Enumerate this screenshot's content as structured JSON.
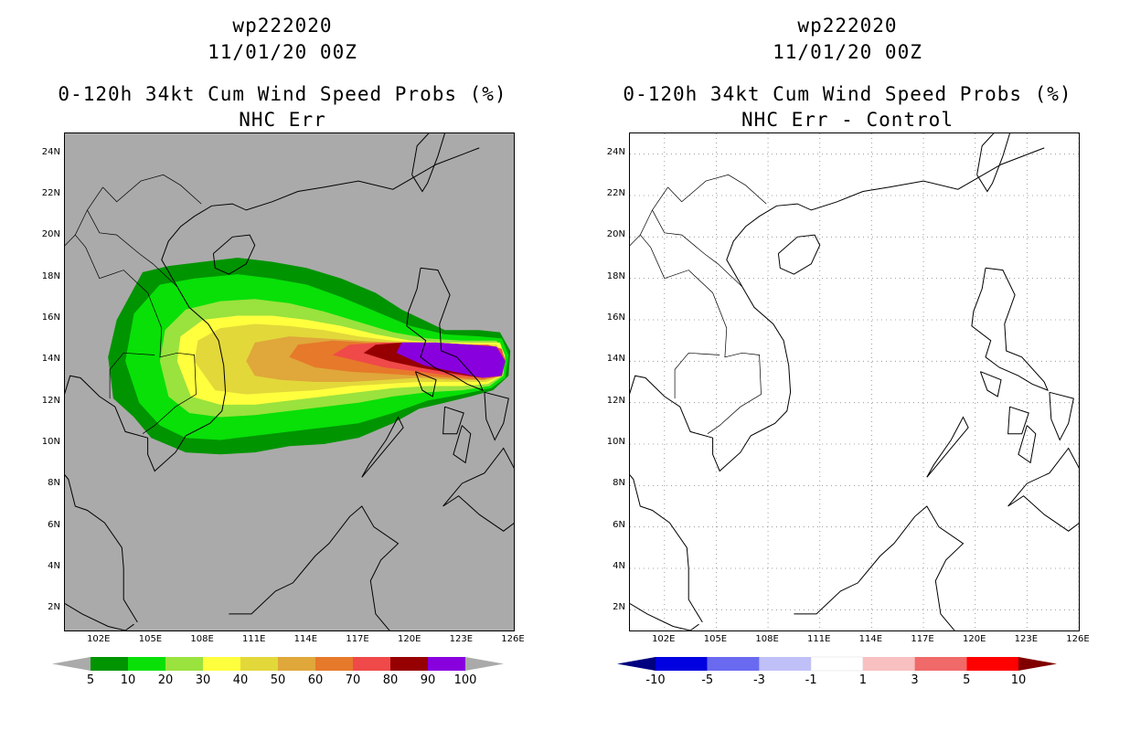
{
  "left": {
    "title1": "wp222020",
    "title2": "11/01/20 00Z",
    "title3": "0-120h 34kt Cum Wind Speed Probs (%)",
    "title4": "NHC Err",
    "colorbar": {
      "labels": [
        "5",
        "10",
        "20",
        "30",
        "40",
        "50",
        "60",
        "70",
        "80",
        "90",
        "100"
      ],
      "colors": [
        "#019401",
        "#08e008",
        "#9ae23e",
        "#ffff3e",
        "#e2d83a",
        "#e0a73a",
        "#e6792a",
        "#f04949",
        "#960000",
        "#8800dd"
      ],
      "under_color": "#aaaaaa",
      "over_color": "#aaaaaa"
    },
    "background_color": "#aaaaaa"
  },
  "right": {
    "title1": "wp222020",
    "title2": "11/01/20 00Z",
    "title3": "0-120h 34kt Cum Wind Speed Probs (%)",
    "title4": "NHC Err - Control",
    "colorbar": {
      "labels": [
        "-10",
        "-5",
        "-3",
        "-1",
        "1",
        "3",
        "5",
        "10"
      ],
      "colors": [
        "#0000e0",
        "#6a6af0",
        "#c0c0f8",
        "#ffffff",
        "#f8c0c0",
        "#f06a6a",
        "#ff0000"
      ],
      "under_color": "#000080",
      "over_color": "#800000"
    },
    "background_color": "#ffffff"
  },
  "axes": {
    "lat_labels": [
      "24N",
      "22N",
      "20N",
      "18N",
      "16N",
      "14N",
      "12N",
      "10N",
      "8N",
      "6N",
      "4N",
      "2N"
    ],
    "lat_values": [
      24,
      22,
      20,
      18,
      16,
      14,
      12,
      10,
      8,
      6,
      4,
      2
    ],
    "lon_labels": [
      "102E",
      "105E",
      "108E",
      "111E",
      "114E",
      "117E",
      "120E",
      "123E",
      "126E"
    ],
    "lon_values": [
      102,
      105,
      108,
      111,
      114,
      117,
      120,
      123,
      126
    ],
    "lon_range": [
      100,
      126
    ],
    "lat_range": [
      1,
      25
    ]
  },
  "prob_field": {
    "levels": [
      5,
      10,
      20,
      30,
      40,
      50,
      60,
      70,
      80,
      90
    ],
    "note_center_lon": 122,
    "note_center_lat": 14
  }
}
